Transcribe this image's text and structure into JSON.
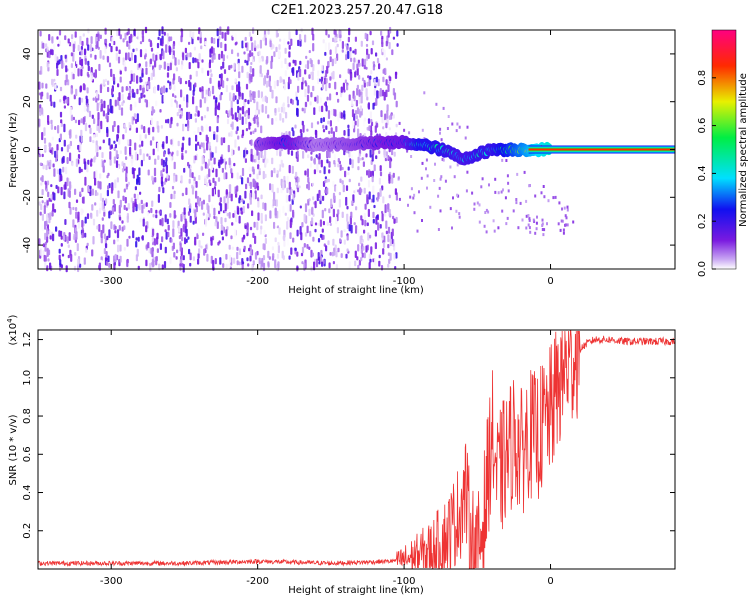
{
  "title": "C2E1.2023.257.20.47.G18",
  "colors": {
    "snr_line": "#ee3333",
    "spectrogram_noise": "#7a1ae0",
    "frame": "#000000"
  },
  "chart_data": [
    {
      "type": "heatmap",
      "title": "C2E1.2023.257.20.47.G18",
      "xlabel": "Height of straight line (km)",
      "ylabel": "Frequency (Hz)",
      "xlim": [
        -350,
        85
      ],
      "ylim": [
        -50,
        50
      ],
      "xticks": [
        -300,
        -200,
        -100,
        0
      ],
      "xtick_labels": [
        "-300",
        "-200",
        "-100",
        "0"
      ],
      "yticks": [
        -40,
        -20,
        0,
        20,
        40
      ],
      "ytick_labels": [
        "-40",
        "-20",
        "0",
        "20",
        "40"
      ],
      "colorbar": {
        "label": "Normalized spectral amplitude",
        "range": [
          0.0,
          1.0
        ],
        "ticks": [
          0.0,
          0.2,
          0.4,
          0.6,
          0.8
        ],
        "tick_labels": [
          "0.0",
          "0.2",
          "0.4",
          "0.6",
          "0.8"
        ],
        "colormap": "rainbow (purple-blue-cyan-green-yellow-red-magenta)"
      },
      "features": {
        "noise_region_x": [
          -350,
          -105
        ],
        "signal_track": [
          {
            "x": -200,
            "y": 2,
            "amp": 0.2
          },
          {
            "x": -180,
            "y": 3,
            "amp": 0.3
          },
          {
            "x": -160,
            "y": 2,
            "amp": 0.15
          },
          {
            "x": -100,
            "y": 3,
            "amp": 0.3
          },
          {
            "x": -90,
            "y": 2,
            "amp": 0.5
          },
          {
            "x": -80,
            "y": 1,
            "amp": 0.5
          },
          {
            "x": -70,
            "y": -1,
            "amp": 0.45
          },
          {
            "x": -60,
            "y": -4,
            "amp": 0.4
          },
          {
            "x": -50,
            "y": -2,
            "amp": 0.45
          },
          {
            "x": -40,
            "y": 0,
            "amp": 0.45
          },
          {
            "x": -20,
            "y": 0,
            "amp": 0.7
          },
          {
            "x": 0,
            "y": 0,
            "amp": 0.95
          },
          {
            "x": 85,
            "y": 0,
            "amp": 1.0
          }
        ]
      }
    },
    {
      "type": "line",
      "xlabel": "Height of straight line (km)",
      "ylabel": "SNR (10 * v/v)",
      "y_multiplier": "(x10⁴)",
      "y_multiplier_base": "(x10",
      "y_multiplier_exp": "4",
      "y_multiplier_close": ")",
      "xlim": [
        -350,
        85
      ],
      "ylim": [
        0,
        1.25
      ],
      "xticks": [
        -300,
        -200,
        -100,
        0
      ],
      "xtick_labels": [
        "-300",
        "-200",
        "-100",
        "0"
      ],
      "yticks": [
        0.2,
        0.4,
        0.6,
        0.8,
        1.0,
        1.2
      ],
      "ytick_labels": [
        "0.2",
        "0.4",
        "0.6",
        "0.8",
        "1.0",
        "1.2"
      ],
      "series": [
        {
          "color": "#ee3333",
          "x": [
            -350,
            -300,
            -250,
            -200,
            -150,
            -110,
            -100,
            -90,
            -80,
            -70,
            -62,
            -58,
            -55,
            -50,
            -45,
            -40,
            -36,
            -32,
            -28,
            -25,
            -20,
            -15,
            -10,
            -5,
            0,
            5,
            10,
            15,
            20,
            25,
            30,
            40,
            50,
            60,
            70,
            85
          ],
          "y": [
            0.03,
            0.03,
            0.03,
            0.04,
            0.03,
            0.04,
            0.05,
            0.07,
            0.1,
            0.18,
            0.3,
            0.42,
            0.2,
            0.05,
            0.3,
            0.72,
            0.45,
            0.55,
            0.62,
            0.7,
            0.6,
            0.72,
            0.68,
            0.75,
            0.82,
            0.95,
            1.05,
            1.1,
            1.15,
            1.18,
            1.2,
            1.2,
            1.19,
            1.19,
            1.19,
            1.19
          ]
        }
      ]
    }
  ]
}
